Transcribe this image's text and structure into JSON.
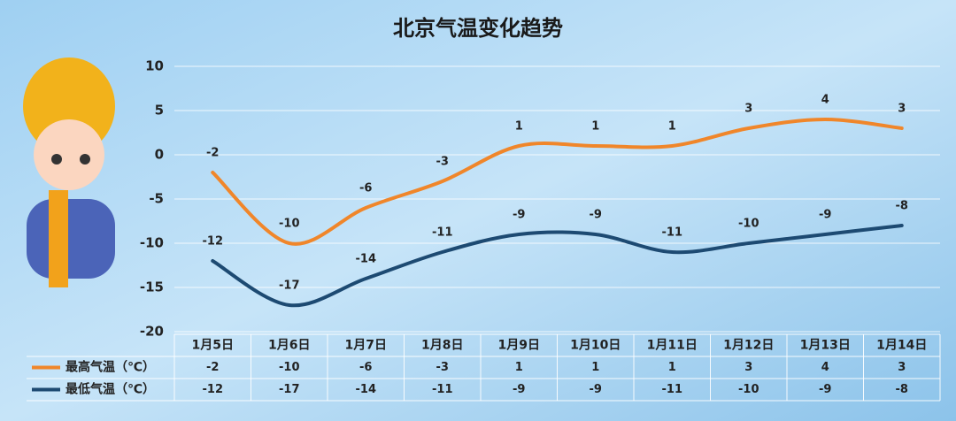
{
  "chart_data": {
    "type": "line",
    "title": "北京气温变化趋势",
    "categories": [
      "1月5日",
      "1月6日",
      "1月7日",
      "1月8日",
      "1月9日",
      "1月10日",
      "1月11日",
      "1月12日",
      "1月13日",
      "1月14日"
    ],
    "series": [
      {
        "name": "最高气温（℃）",
        "color": "#f0862a",
        "values": [
          -2,
          -10,
          -6,
          -3,
          1,
          1,
          1,
          3,
          4,
          3
        ]
      },
      {
        "name": "最低气温（℃）",
        "color": "#1d4a72",
        "values": [
          -12,
          -17,
          -14,
          -11,
          -9,
          -9,
          -11,
          -10,
          -9,
          -8
        ]
      }
    ],
    "ylim": [
      -20,
      10
    ],
    "yticks": [
      -20,
      -15,
      -10,
      -5,
      0,
      5,
      10
    ],
    "grid": true,
    "data_table": true
  }
}
